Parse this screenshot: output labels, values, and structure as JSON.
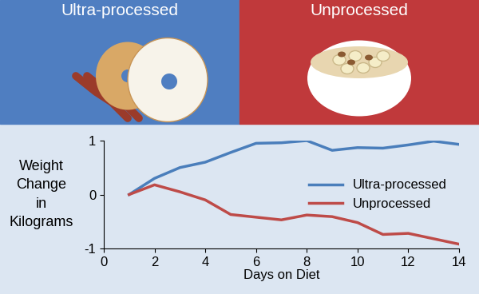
{
  "panels": [
    {
      "title": "Ultra-processed"
    },
    {
      "title": "Unprocessed"
    }
  ],
  "chart_data": {
    "type": "line",
    "x_label": "Days on Diet",
    "y_label": "Weight Change in Kilograms",
    "x": [
      1,
      2,
      3,
      4,
      5,
      6,
      7,
      8,
      9,
      10,
      11,
      12,
      13,
      14
    ],
    "series": [
      {
        "name": "Ultra-processed",
        "color": "#4a7ebb",
        "values": [
          0,
          0.3,
          0.5,
          0.6,
          0.78,
          0.95,
          0.96,
          1.0,
          0.82,
          0.87,
          0.86,
          0.92,
          0.99,
          0.93
        ]
      },
      {
        "name": "Unprocessed",
        "color": "#be4b48",
        "values": [
          0,
          0.18,
          0.05,
          -0.1,
          -0.37,
          -0.42,
          -0.47,
          -0.38,
          -0.41,
          -0.52,
          -0.74,
          -0.72,
          -0.82,
          -0.92
        ]
      }
    ],
    "xlim": [
      0,
      14
    ],
    "xticks": [
      0,
      2,
      4,
      6,
      8,
      10,
      12,
      14
    ],
    "ylim": [
      -1,
      1
    ],
    "yticks": [
      -1,
      0,
      1
    ],
    "grid": false,
    "legend": "center right"
  }
}
